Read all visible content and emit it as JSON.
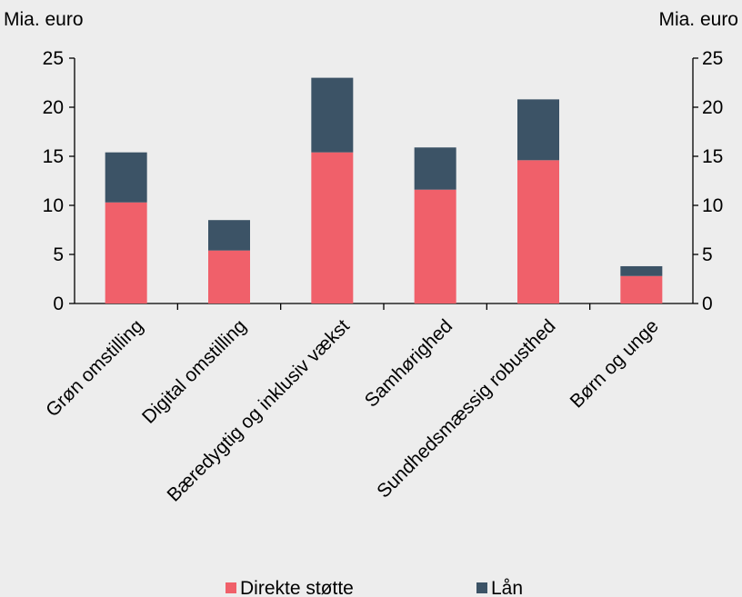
{
  "chart_data": {
    "type": "bar",
    "stacked": true,
    "categories": [
      "Grøn omstilling",
      "Digital omstilling",
      "Bæredygtig og inklusiv vækst",
      "Samhørighed",
      "Sundhedsmæssig robusthed",
      "Børn og unge"
    ],
    "series": [
      {
        "name": "Direkte støtte",
        "color": "#f0606a",
        "values": [
          10.3,
          5.4,
          15.4,
          11.6,
          14.6,
          2.8
        ]
      },
      {
        "name": "Lån",
        "color": "#3c5366",
        "values": [
          5.1,
          3.1,
          7.6,
          4.3,
          6.2,
          1.0
        ]
      }
    ],
    "ylabel_left": "Mia. euro",
    "ylabel_right": "Mia. euro",
    "ylim": [
      0,
      25
    ],
    "yticks": [
      0,
      5,
      10,
      15,
      20,
      25
    ],
    "grid": false,
    "legend_position": "bottom"
  }
}
